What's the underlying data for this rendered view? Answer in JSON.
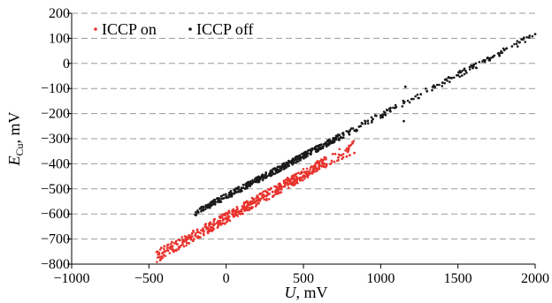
{
  "chart_data": {
    "type": "scatter",
    "xlabel": {
      "symbol": "U",
      "unit": ", mV"
    },
    "ylabel": {
      "symbol": "E",
      "subscript": "Cu",
      "unit": ", mV"
    },
    "xlim": [
      -1000,
      2000
    ],
    "ylim": [
      -800,
      200
    ],
    "xticks": [
      -1000,
      -500,
      0,
      500,
      1000,
      1500,
      2000
    ],
    "yticks": [
      -800,
      -700,
      -600,
      -500,
      -400,
      -300,
      -200,
      -100,
      0,
      100,
      200
    ],
    "xtick_labels": [
      "−1000",
      "−500",
      "0",
      "500",
      "1000",
      "1500",
      "2000"
    ],
    "ytick_labels": [
      "−800",
      "−700",
      "−600",
      "−500",
      "−400",
      "−300",
      "−200",
      "−100",
      "0",
      "100",
      "200"
    ],
    "grid": {
      "horizontal": true,
      "style": "dashed",
      "color": "#9a9a9a"
    },
    "legend_position": "top-left",
    "series": [
      {
        "name": "ICCP on",
        "color": "#e8322c",
        "trend": {
          "slope": 0.345,
          "intercept": -615
        },
        "x_range": [
          -450,
          830
        ],
        "points": [
          [
            -450,
            -752
          ],
          [
            -420,
            -735
          ],
          [
            -400,
            -728
          ],
          [
            -380,
            -725
          ],
          [
            -350,
            -712
          ],
          [
            -320,
            -720
          ],
          [
            -300,
            -705
          ],
          [
            -280,
            -703
          ],
          [
            -250,
            -700
          ],
          [
            -220,
            -690
          ],
          [
            -200,
            -685
          ],
          [
            -180,
            -672
          ],
          [
            -150,
            -668
          ],
          [
            -120,
            -655
          ],
          [
            -100,
            -652
          ],
          [
            -80,
            -645
          ],
          [
            -60,
            -636
          ],
          [
            -40,
            -628
          ],
          [
            -20,
            -622
          ],
          [
            0,
            -620
          ],
          [
            20,
            -611
          ],
          [
            40,
            -600
          ],
          [
            60,
            -596
          ],
          [
            80,
            -592
          ],
          [
            100,
            -583
          ],
          [
            120,
            -578
          ],
          [
            140,
            -566
          ],
          [
            160,
            -560
          ],
          [
            180,
            -553
          ],
          [
            200,
            -546
          ],
          [
            220,
            -540
          ],
          [
            240,
            -534
          ],
          [
            260,
            -528
          ],
          [
            280,
            -520
          ],
          [
            300,
            -512
          ],
          [
            320,
            -506
          ],
          [
            340,
            -500
          ],
          [
            360,
            -494
          ],
          [
            380,
            -490
          ],
          [
            400,
            -484
          ],
          [
            420,
            -475
          ],
          [
            440,
            -470
          ],
          [
            460,
            -462
          ],
          [
            480,
            -455
          ],
          [
            500,
            -448
          ],
          [
            520,
            -442
          ],
          [
            540,
            -434
          ],
          [
            560,
            -428
          ],
          [
            580,
            -420
          ],
          [
            600,
            -415
          ],
          [
            620,
            -408
          ],
          [
            650,
            -402
          ],
          [
            700,
            -392
          ],
          [
            720,
            -388
          ],
          [
            750,
            -380
          ],
          [
            780,
            -371
          ],
          [
            800,
            -366
          ],
          [
            830,
            -357
          ]
        ]
      },
      {
        "name": "ICCP off",
        "color": "#1a1a1a",
        "trend": {
          "slope": 0.323,
          "intercept": -530
        },
        "x_range": [
          -200,
          2000
        ],
        "points": [
          [
            -200,
            -603
          ],
          [
            -180,
            -594
          ],
          [
            -150,
            -585
          ],
          [
            -120,
            -575
          ],
          [
            -100,
            -564
          ],
          [
            -80,
            -558
          ],
          [
            -50,
            -548
          ],
          [
            -20,
            -538
          ],
          [
            0,
            -530
          ],
          [
            30,
            -522
          ],
          [
            60,
            -512
          ],
          [
            100,
            -498
          ],
          [
            130,
            -487
          ],
          [
            160,
            -478
          ],
          [
            200,
            -466
          ],
          [
            240,
            -452
          ],
          [
            280,
            -440
          ],
          [
            320,
            -427
          ],
          [
            360,
            -414
          ],
          [
            400,
            -400
          ],
          [
            450,
            -385
          ],
          [
            500,
            -367
          ],
          [
            550,
            -352
          ],
          [
            600,
            -337
          ],
          [
            650,
            -320
          ],
          [
            700,
            -303
          ],
          [
            760,
            -285
          ],
          [
            800,
            -270
          ],
          [
            860,
            -252
          ],
          [
            900,
            -240
          ],
          [
            950,
            -222
          ],
          [
            1000,
            -207
          ],
          [
            1060,
            -189
          ],
          [
            1100,
            -174
          ],
          [
            1150,
            -158
          ],
          [
            1200,
            -142
          ],
          [
            1260,
            -123
          ],
          [
            1300,
            -111
          ],
          [
            1350,
            -95
          ],
          [
            1400,
            -77
          ],
          [
            1460,
            -58
          ],
          [
            1500,
            -47
          ],
          [
            1550,
            -30
          ],
          [
            1600,
            -12
          ],
          [
            1660,
            8
          ],
          [
            1700,
            20
          ],
          [
            1760,
            40
          ],
          [
            1800,
            53
          ],
          [
            1850,
            68
          ],
          [
            1900,
            84
          ],
          [
            1960,
            103
          ],
          [
            2000,
            117
          ],
          [
            1160,
            -93
          ],
          [
            1150,
            -230
          ]
        ]
      }
    ]
  }
}
